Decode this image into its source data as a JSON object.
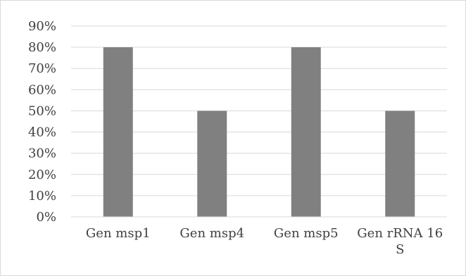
{
  "chart_data": {
    "type": "bar",
    "categories": [
      [
        "Gen msp1"
      ],
      [
        "Gen msp4"
      ],
      [
        "Gen msp5"
      ],
      [
        "Gen rRNA 16",
        "S"
      ]
    ],
    "values": [
      0.8,
      0.5,
      0.8,
      0.5
    ],
    "y_ticks": [
      "0%",
      "10%",
      "20%",
      "30%",
      "40%",
      "50%",
      "60%",
      "70%",
      "80%",
      "90%"
    ],
    "ylim": [
      0,
      0.9
    ],
    "grid": true,
    "legend": "none",
    "bar_color": "#808080",
    "grid_color": "#d9d9d9"
  }
}
